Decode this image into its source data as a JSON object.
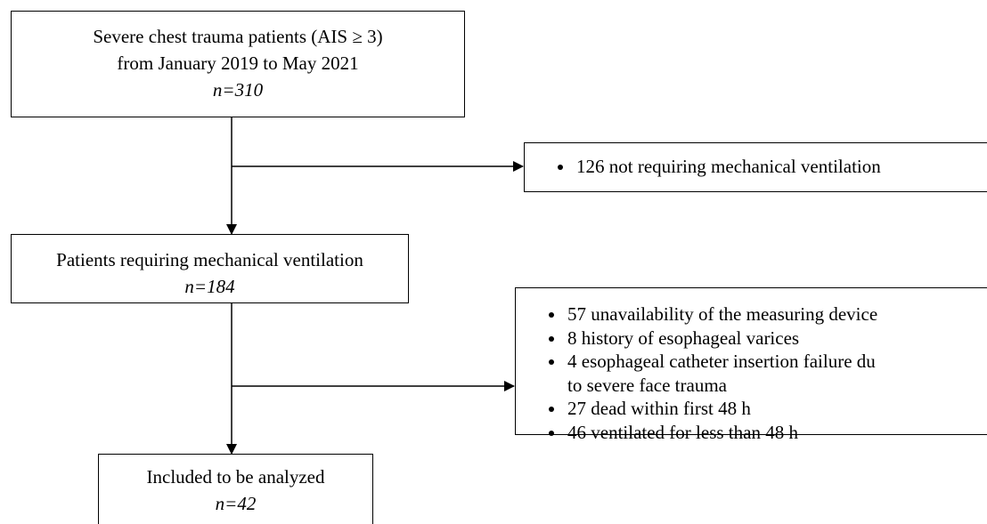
{
  "nodes": [
    {
      "lines": [
        "Severe chest trauma patients (AIS ≥ 3)",
        "from January 2019 to May 2021"
      ],
      "count": "n=310"
    },
    {
      "lines": [
        "Patients requiring mechanical ventilation"
      ],
      "count": "n=184"
    },
    {
      "lines": [
        "Included to be analyzed"
      ],
      "count": "n=42"
    }
  ],
  "exclusions": [
    {
      "items": [
        [
          "126 not requiring mechanical ventilation"
        ]
      ]
    },
    {
      "items": [
        [
          "57 unavailability of the measuring device"
        ],
        [
          "8 history of esophageal varices"
        ],
        [
          "4 esophageal catheter insertion failure du",
          "to severe face trauma"
        ],
        [
          "27 dead within first 48 h"
        ],
        [
          "46 ventilated for less than 48 h"
        ]
      ]
    }
  ]
}
